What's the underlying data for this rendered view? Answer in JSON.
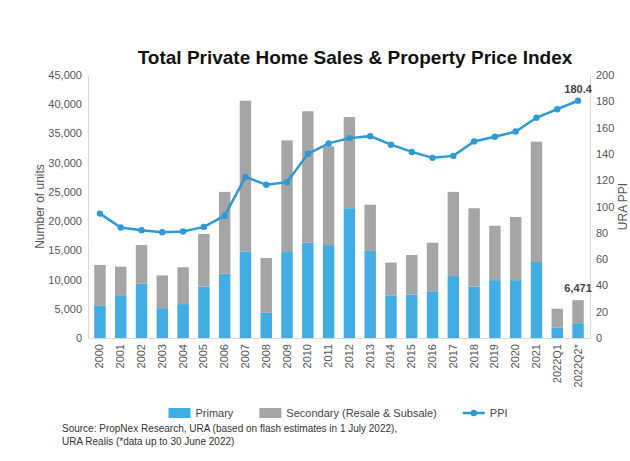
{
  "chart_data": {
    "type": "bar",
    "title": "Total Private Home Sales & Property Price Index",
    "y_label": "Number of units",
    "y2_label": "URA PPI",
    "source": [
      "Source: PropNex Research, URA (based on flash estimates in 1 July 2022),",
      "URA Realis (*data up to 30 June 2022)"
    ],
    "categories": [
      "2000",
      "2001",
      "2002",
      "2003",
      "2004",
      "2005",
      "2006",
      "2007",
      "2008",
      "2009",
      "2010",
      "2011",
      "2012",
      "2013",
      "2014",
      "2015",
      "2016",
      "2017",
      "2018",
      "2019",
      "2020",
      "2021",
      "2022Q1",
      "2022Q2*"
    ],
    "series": [
      {
        "name": "Primary",
        "color": "#41ade2",
        "values": [
          5500,
          7200,
          9300,
          5100,
          5800,
          8800,
          11000,
          14800,
          4300,
          14700,
          16300,
          15900,
          22200,
          14900,
          7300,
          7400,
          8000,
          10600,
          8800,
          9900,
          9900,
          13000,
          1800,
          2400
        ]
      },
      {
        "name": "Secondary (Resale & Subsale)",
        "color": "#a5a5a5",
        "values": [
          7000,
          5000,
          6600,
          5600,
          6300,
          9000,
          14000,
          25800,
          9400,
          19100,
          22500,
          16900,
          15600,
          7900,
          5600,
          6800,
          8300,
          14400,
          13400,
          9300,
          10800,
          20600,
          3200,
          4071
        ]
      },
      {
        "name": "PPI",
        "type": "line",
        "axis": "y2",
        "color": "#2d9ad6",
        "marker": "circle",
        "values": [
          94.6,
          84,
          82,
          80.5,
          81,
          84.5,
          93,
          122.5,
          116.5,
          118.5,
          140,
          148,
          152,
          153.5,
          147,
          141.5,
          137,
          138.5,
          149.5,
          153,
          157,
          167.5,
          174,
          180.4
        ]
      }
    ],
    "stacked": true,
    "grid": false,
    "legend": "bottom",
    "ylim": [
      0,
      45000
    ],
    "yticks": [
      0,
      {
        "value": 5000,
        "label": "5,000"
      },
      {
        "value": 10000,
        "label": "10,000"
      },
      {
        "value": 15000,
        "label": "15,000"
      },
      {
        "value": 20000,
        "label": "20,000"
      },
      {
        "value": 25000,
        "label": "25,000"
      },
      {
        "value": 30000,
        "label": "30,000"
      },
      {
        "value": 35000,
        "label": "35,000"
      },
      {
        "value": 40000,
        "label": "40,000"
      },
      {
        "value": 45000,
        "label": "45,000"
      }
    ],
    "y2lim": [
      0,
      200
    ],
    "y2ticks": [
      0,
      20,
      40,
      60,
      80,
      100,
      120,
      140,
      160,
      180,
      200
    ],
    "annotations": [
      {
        "label": "180.4",
        "value": 180.4,
        "category": "2022Q2*",
        "axis": "y2"
      },
      {
        "label": "6,471",
        "value": 6471,
        "category": "2022Q2*"
      }
    ]
  }
}
